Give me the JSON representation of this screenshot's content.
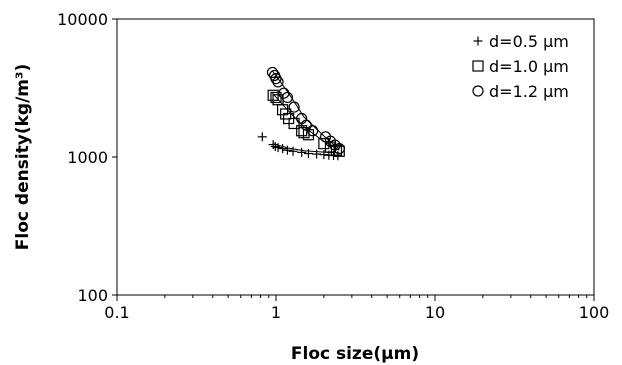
{
  "chart_data": {
    "type": "scatter",
    "title": "",
    "xlabel": "Floc size(μm)",
    "ylabel": "Floc density(kg/m³)",
    "xscale": "log",
    "yscale": "log",
    "xlim": [
      0.1,
      100
    ],
    "ylim": [
      100,
      10000
    ],
    "x_ticks": [
      "0.1",
      "1",
      "10",
      "100"
    ],
    "y_ticks": [
      "100",
      "1000",
      "10000"
    ],
    "grid": false,
    "legend_position": "top-right",
    "series": [
      {
        "name": "d=0.5 μm",
        "marker": "plus",
        "points": [
          [
            0.82,
            1400
          ],
          [
            0.96,
            1230
          ],
          [
            0.99,
            1190
          ],
          [
            1.03,
            1170
          ],
          [
            1.1,
            1150
          ],
          [
            1.18,
            1120
          ],
          [
            1.28,
            1100
          ],
          [
            1.45,
            1080
          ],
          [
            1.6,
            1060
          ],
          [
            1.8,
            1050
          ],
          [
            2.0,
            1040
          ],
          [
            2.15,
            1030
          ],
          [
            2.3,
            1025
          ],
          [
            2.45,
            1020
          ]
        ],
        "fit": [
          [
            0.95,
            1250
          ],
          [
            1.2,
            1160
          ],
          [
            1.5,
            1110
          ],
          [
            2.0,
            1085
          ],
          [
            2.5,
            1070
          ]
        ]
      },
      {
        "name": "d=1.0 μm",
        "marker": "square",
        "points": [
          [
            0.96,
            2800
          ],
          [
            1.0,
            2700
          ],
          [
            1.03,
            2600
          ],
          [
            1.1,
            2200
          ],
          [
            1.15,
            2050
          ],
          [
            1.2,
            1900
          ],
          [
            1.3,
            1750
          ],
          [
            1.45,
            1550
          ],
          [
            1.5,
            1500
          ],
          [
            1.6,
            1450
          ],
          [
            2.0,
            1250
          ],
          [
            2.2,
            1180
          ],
          [
            2.4,
            1120
          ],
          [
            2.5,
            1100
          ]
        ],
        "fit": [
          [
            0.95,
            2900
          ],
          [
            1.2,
            2150
          ],
          [
            1.5,
            1650
          ],
          [
            2.0,
            1300
          ],
          [
            2.5,
            1120
          ]
        ]
      },
      {
        "name": "d=1.2 μm",
        "marker": "circle",
        "points": [
          [
            0.95,
            4100
          ],
          [
            0.98,
            3900
          ],
          [
            1.0,
            3700
          ],
          [
            1.03,
            3500
          ],
          [
            1.12,
            2900
          ],
          [
            1.18,
            2700
          ],
          [
            1.3,
            2300
          ],
          [
            1.45,
            1900
          ],
          [
            1.55,
            1700
          ],
          [
            1.7,
            1550
          ],
          [
            2.05,
            1400
          ],
          [
            2.2,
            1300
          ],
          [
            2.35,
            1220
          ],
          [
            2.5,
            1150
          ]
        ],
        "fit": [
          [
            0.95,
            4200
          ],
          [
            1.2,
            2900
          ],
          [
            1.5,
            1950
          ],
          [
            2.0,
            1420
          ],
          [
            2.5,
            1140
          ]
        ]
      }
    ]
  }
}
